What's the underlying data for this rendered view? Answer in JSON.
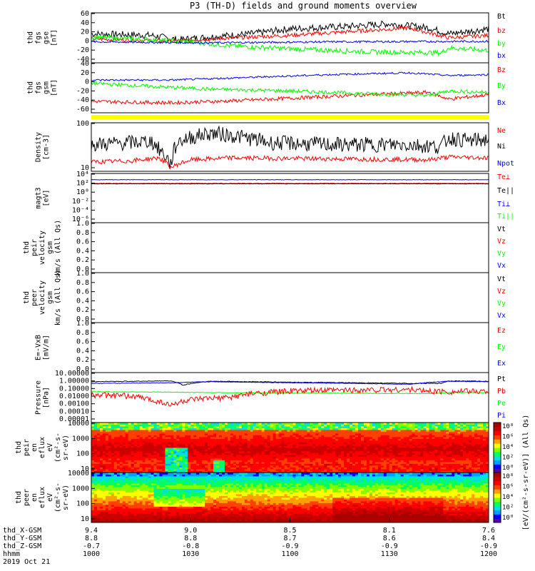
{
  "title": "P3 (TH-D) fields and ground moments overview",
  "colors": {
    "black": "#000000",
    "red": "#ff0000",
    "green": "#00ff00",
    "blue": "#0000ff",
    "yellow": "#ffff00"
  },
  "chart_data": [
    {
      "type": "line",
      "name": "fgs",
      "ylabel": [
        "thd",
        "fgs",
        "gse",
        "[nT]"
      ],
      "ylim": [
        -40,
        60
      ],
      "yticks": [
        "60",
        "40",
        "20",
        "0",
        "-20",
        "-40"
      ],
      "legend": [
        {
          "label": "Bt",
          "color": "#000000"
        },
        {
          "label": "bz",
          "color": "#ff0000"
        },
        {
          "label": "by",
          "color": "#00ff00"
        },
        {
          "label": "bx",
          "color": "#0000ff"
        }
      ],
      "series": [
        {
          "name": "Bt",
          "color": "#000000",
          "knots": [
            [
              0,
              18
            ],
            [
              0.15,
              15
            ],
            [
              0.22,
              6
            ],
            [
              0.3,
              12
            ],
            [
              0.4,
              18
            ],
            [
              0.5,
              28
            ],
            [
              0.65,
              33
            ],
            [
              0.75,
              38
            ],
            [
              0.85,
              30
            ],
            [
              0.9,
              18
            ],
            [
              1,
              28
            ]
          ],
          "noise": 7
        },
        {
          "name": "bz",
          "color": "#ff0000",
          "knots": [
            [
              0,
              8
            ],
            [
              0.2,
              3
            ],
            [
              0.3,
              8
            ],
            [
              0.5,
              15
            ],
            [
              0.7,
              25
            ],
            [
              0.8,
              30
            ],
            [
              0.9,
              10
            ],
            [
              1,
              15
            ]
          ],
          "noise": 4
        },
        {
          "name": "by",
          "color": "#00ff00",
          "knots": [
            [
              0,
              12
            ],
            [
              0.15,
              6
            ],
            [
              0.25,
              2
            ],
            [
              0.35,
              -6
            ],
            [
              0.5,
              -12
            ],
            [
              0.7,
              -18
            ],
            [
              0.88,
              -20
            ],
            [
              0.9,
              -10
            ],
            [
              1,
              -15
            ]
          ],
          "noise": 5
        },
        {
          "name": "bx",
          "color": "#0000ff",
          "knots": [
            [
              0,
              2
            ],
            [
              0.3,
              0
            ],
            [
              0.6,
              2
            ],
            [
              1,
              3
            ]
          ],
          "noise": 2
        }
      ]
    },
    {
      "type": "line",
      "name": "fgs_gsm",
      "ylabel": [
        "thd",
        "fgs",
        "gsm",
        "[nT]"
      ],
      "ylim": [
        -70,
        40
      ],
      "yticks": [
        "40",
        "20",
        "0",
        "-20",
        "-40",
        "-60"
      ],
      "legend": [
        {
          "label": "Bz",
          "color": "#ff0000"
        },
        {
          "label": "By",
          "color": "#00ff00"
        },
        {
          "label": "Bx",
          "color": "#0000ff"
        }
      ],
      "series": [
        {
          "name": "Bz",
          "color": "#ff0000",
          "knots": [
            [
              0,
              -45
            ],
            [
              0.2,
              -48
            ],
            [
              0.35,
              -44
            ],
            [
              0.5,
              -38
            ],
            [
              0.7,
              -30
            ],
            [
              0.85,
              -25
            ],
            [
              0.9,
              -40
            ],
            [
              1,
              -30
            ]
          ],
          "noise": 4
        },
        {
          "name": "By",
          "color": "#00ff00",
          "knots": [
            [
              0,
              -5
            ],
            [
              0.15,
              -12
            ],
            [
              0.3,
              -18
            ],
            [
              0.5,
              -22
            ],
            [
              0.7,
              -28
            ],
            [
              0.85,
              -32
            ],
            [
              0.9,
              -22
            ],
            [
              1,
              -25
            ]
          ],
          "noise": 4
        },
        {
          "name": "Bx",
          "color": "#0000ff",
          "knots": [
            [
              0,
              2
            ],
            [
              0.2,
              2
            ],
            [
              0.4,
              8
            ],
            [
              0.6,
              14
            ],
            [
              0.8,
              18
            ],
            [
              0.9,
              12
            ],
            [
              1,
              14
            ]
          ],
          "noise": 2
        }
      ]
    },
    {
      "type": "line",
      "name": "density",
      "ylabel": [
        "Density",
        "[cm-3]"
      ],
      "ylim": [
        8,
        150
      ],
      "log": true,
      "yticks": [
        "100",
        "10"
      ],
      "legend": [
        {
          "label": "Ne",
          "color": "#ff0000"
        },
        {
          "label": "Ni",
          "color": "#000000"
        },
        {
          "label": "Npot",
          "color": "#0000ff"
        }
      ],
      "series": [
        {
          "name": "Ni",
          "color": "#000000",
          "knots": [
            [
              0,
              40
            ],
            [
              0.1,
              45
            ],
            [
              0.15,
              50
            ],
            [
              0.17,
              30
            ],
            [
              0.2,
              12
            ],
            [
              0.22,
              50
            ],
            [
              0.3,
              80
            ],
            [
              0.35,
              70
            ],
            [
              0.45,
              45
            ],
            [
              0.6,
              40
            ],
            [
              0.8,
              40
            ],
            [
              0.88,
              35
            ],
            [
              0.9,
              60
            ],
            [
              0.95,
              50
            ],
            [
              1,
              55
            ]
          ],
          "noise": 0.2
        },
        {
          "name": "Ne",
          "color": "#ff0000",
          "knots": [
            [
              0,
              14
            ],
            [
              0.1,
              15
            ],
            [
              0.17,
              18
            ],
            [
              0.2,
              10
            ],
            [
              0.25,
              16
            ],
            [
              0.35,
              18
            ],
            [
              0.6,
              17
            ],
            [
              0.85,
              16
            ],
            [
              0.9,
              19
            ],
            [
              1,
              18
            ]
          ],
          "noise": 0.06
        }
      ]
    },
    {
      "type": "line",
      "name": "temperature",
      "ylabel": [
        "magt3",
        "[eV]"
      ],
      "ylim": [
        1e-06,
        100000.0
      ],
      "log": true,
      "yticks": [
        "10⁴",
        "10²",
        "10⁰",
        "10⁻²",
        "10⁻⁴",
        "10⁻⁶"
      ],
      "legend": [
        {
          "label": "Te⊥",
          "color": "#ff0000"
        },
        {
          "label": "Te||",
          "color": "#000000"
        },
        {
          "label": "Ti⊥",
          "color": "#0000ff"
        },
        {
          "label": "Ti||",
          "color": "#00ff00"
        }
      ],
      "series": [
        {
          "name": "Ti",
          "color": "#0000ff",
          "knots": [
            [
              0,
              4000
            ],
            [
              1,
              4000
            ]
          ],
          "noise": 0.05
        },
        {
          "name": "Te",
          "color": "#ff0000",
          "knots": [
            [
              0,
              600
            ],
            [
              1,
              600
            ]
          ],
          "noise": 0.05
        },
        {
          "name": "Te||",
          "color": "#000000",
          "knots": [
            [
              0,
              500
            ],
            [
              1,
              500
            ]
          ],
          "noise": 0.05
        }
      ]
    },
    {
      "type": "line",
      "name": "peir_velocity",
      "ylabel": [
        "thd",
        "peir",
        "velocity",
        "gsm",
        "km/s (All Qs)"
      ],
      "ylim": [
        0,
        1
      ],
      "yticks": [
        "1.0",
        "0.8",
        "0.6",
        "0.4",
        "0.2",
        "0.0"
      ],
      "legend": [
        {
          "label": "Vt",
          "color": "#000000"
        },
        {
          "label": "Vz",
          "color": "#ff0000"
        },
        {
          "label": "Vy",
          "color": "#00ff00"
        },
        {
          "label": "Vx",
          "color": "#0000ff"
        }
      ],
      "series": []
    },
    {
      "type": "line",
      "name": "peer_velocity",
      "ylabel": [
        "thd",
        "peer",
        "velocity",
        "gsm",
        "km/s (All Qs)"
      ],
      "ylim": [
        0,
        1
      ],
      "yticks": [
        "1.0",
        "0.8",
        "0.6",
        "0.4",
        "0.2",
        "0.0"
      ],
      "legend": [
        {
          "label": "Vt",
          "color": "#000000"
        },
        {
          "label": "Vz",
          "color": "#ff0000"
        },
        {
          "label": "Vy",
          "color": "#00ff00"
        },
        {
          "label": "Vx",
          "color": "#0000ff"
        }
      ],
      "series": []
    },
    {
      "type": "line",
      "name": "efield",
      "ylabel": [
        "E=-VxB",
        "[mV/m]"
      ],
      "ylim": [
        0,
        1
      ],
      "yticks": [
        "1.0",
        "0.8",
        "0.6",
        "0.4",
        "0.2",
        "0.0"
      ],
      "legend": [
        {
          "label": "Ez",
          "color": "#ff0000"
        },
        {
          "label": "Ey",
          "color": "#00ff00"
        },
        {
          "label": "Ex",
          "color": "#0000ff"
        }
      ],
      "series": []
    },
    {
      "type": "line",
      "name": "pressure",
      "ylabel": [
        "Pressure",
        "[nPa]"
      ],
      "ylim": [
        1e-05,
        10
      ],
      "log": true,
      "yticks": [
        "10.00000",
        "1.00000",
        "0.10000",
        "0.01000",
        "0.00100",
        "0.00010",
        "0.00001"
      ],
      "legend": [
        {
          "label": "Pt",
          "color": "#000000"
        },
        {
          "label": "Pb",
          "color": "#ff0000"
        },
        {
          "label": "Pe",
          "color": "#00ff00"
        },
        {
          "label": "Pi",
          "color": "#0000ff"
        }
      ],
      "series": [
        {
          "name": "Pt",
          "color": "#000000",
          "knots": [
            [
              0,
              0.8
            ],
            [
              0.2,
              1.0
            ],
            [
              0.23,
              0.3
            ],
            [
              0.3,
              0.9
            ],
            [
              0.5,
              0.7
            ],
            [
              0.8,
              0.5
            ],
            [
              0.88,
              0.5
            ],
            [
              0.9,
              1.0
            ],
            [
              1,
              0.9
            ]
          ],
          "noise": 0.04
        },
        {
          "name": "Pi",
          "color": "#0000ff",
          "knots": [
            [
              0,
              0.5
            ],
            [
              0.2,
              0.6
            ],
            [
              0.3,
              0.8
            ],
            [
              0.5,
              0.6
            ],
            [
              0.8,
              0.4
            ],
            [
              0.9,
              0.9
            ],
            [
              1,
              0.8
            ]
          ],
          "noise": 0.03
        },
        {
          "name": "Pe",
          "color": "#00ff00",
          "knots": [
            [
              0,
              0.05
            ],
            [
              0.2,
              0.045
            ],
            [
              0.3,
              0.04
            ],
            [
              0.5,
              0.035
            ],
            [
              0.85,
              0.03
            ],
            [
              0.9,
              0.04
            ],
            [
              1,
              0.04
            ]
          ],
          "noise": 0.03
        },
        {
          "name": "Pb",
          "color": "#ff0000",
          "knots": [
            [
              0,
              0.02
            ],
            [
              0.1,
              0.015
            ],
            [
              0.15,
              0.005
            ],
            [
              0.2,
              0.001
            ],
            [
              0.25,
              0.005
            ],
            [
              0.35,
              0.01
            ],
            [
              0.5,
              0.06
            ],
            [
              0.65,
              0.08
            ],
            [
              0.8,
              0.09
            ],
            [
              0.85,
              0.06
            ],
            [
              0.9,
              0.05
            ],
            [
              1,
              0.06
            ]
          ],
          "noise": 0.35
        }
      ]
    },
    {
      "type": "heatmap",
      "name": "peir_eflux",
      "ylabel": [
        "thd",
        "peir",
        "en",
        "eflux",
        "eV",
        "(cm²-s-",
        "sr-eV)"
      ],
      "ylim": [
        5,
        30000
      ],
      "log": true,
      "yticks": [
        "10000",
        "1000",
        "100",
        "10"
      ],
      "colorbar": {
        "ticks": [
          "10⁸",
          "10⁶",
          "10⁴",
          "10²",
          "10⁰"
        ]
      }
    },
    {
      "type": "heatmap",
      "name": "peer_eflux",
      "ylabel": [
        "thd",
        "peer",
        "en",
        "eflux",
        "eV",
        "(cm²-s-",
        "sr-eV)"
      ],
      "ylim": [
        5,
        30000
      ],
      "log": true,
      "yticks": [
        "10000",
        "1000",
        "100",
        "10"
      ],
      "colorbar": {
        "ticks": [
          "10⁸",
          "10⁶",
          "10⁴",
          "10²",
          "10⁰"
        ]
      }
    }
  ],
  "colorbar_label": "[eV/(cm²-s-sr-eV)] (All Qs)",
  "xaxis": {
    "rows": [
      {
        "label": "thd_X-GSM",
        "values": [
          "9.4",
          "9.0",
          "8.5",
          "8.1",
          "7.6"
        ]
      },
      {
        "label": "thd_Y-GSM",
        "values": [
          "8.8",
          "8.8",
          "8.7",
          "8.6",
          "8.4"
        ]
      },
      {
        "label": "thd_Z-GSM",
        "values": [
          "-0.7",
          "-0.8",
          "-0.9",
          "-0.9",
          "-0.9"
        ]
      },
      {
        "label": "hhmm",
        "values": [
          "1000",
          "1030",
          "1100",
          "1130",
          "1200"
        ]
      }
    ],
    "date": "2019 Oct 21"
  }
}
